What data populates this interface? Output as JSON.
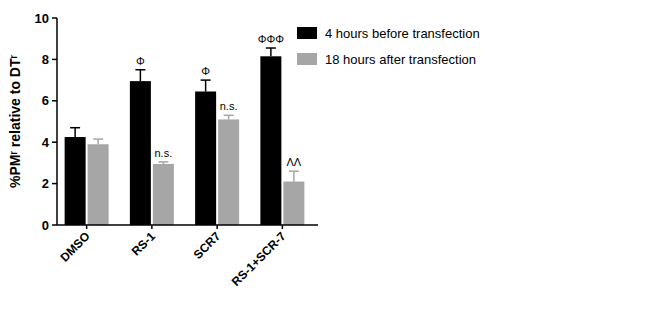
{
  "chart_data": {
    "type": "bar",
    "y_label": "%PMʳ relative to DTʳ",
    "categories": [
      "DMSO",
      "RS-1",
      "SCR7",
      "RS-1+SCR-7"
    ],
    "series": [
      {
        "name": "4 hours before transfection",
        "color": "#000000",
        "values": [
          4.25,
          6.95,
          6.45,
          8.15
        ],
        "errors": [
          0.45,
          0.55,
          0.55,
          0.4
        ],
        "annotations": [
          null,
          "Φ",
          "Φ",
          "ΦΦΦ"
        ]
      },
      {
        "name": "18 hours after transfection",
        "color": "#a6a6a6",
        "values": [
          3.9,
          2.95,
          5.1,
          2.1
        ],
        "errors": [
          0.25,
          0.1,
          0.2,
          0.5
        ],
        "annotations": [
          null,
          "n.s.",
          "n.s.",
          "ΛΛ"
        ]
      }
    ],
    "ylim": [
      0,
      10
    ],
    "yticks": [
      0,
      2,
      4,
      6,
      8,
      10
    ],
    "grid": false,
    "legend": "right"
  }
}
